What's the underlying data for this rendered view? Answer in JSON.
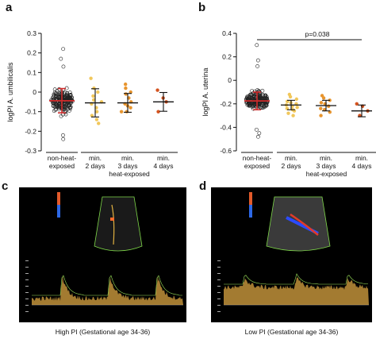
{
  "panels": {
    "a": "a",
    "b": "b",
    "c": "c",
    "d": "d"
  },
  "chart_data": [
    {
      "type": "scatter",
      "panel": "a",
      "ylabel": "logPI A. umbilicalis",
      "ylim": [
        -0.3,
        0.3
      ],
      "yticks": [
        "0.3",
        "0.2",
        "0.1",
        "0",
        "-0.1",
        "-0.2",
        "-0.3"
      ],
      "group_label": "heat-exposed",
      "categories": [
        {
          "lines": [
            "non-heat-",
            "exposed"
          ],
          "center": -0.044,
          "spread": 0.062,
          "n": 200,
          "points": [
            0.22,
            0.17,
            -0.24,
            -0.22,
            0.13
          ]
        },
        {
          "lines": [
            "min.",
            "2 days"
          ],
          "mean": -0.055,
          "sd": 0.072,
          "points": [
            0.07,
            0.02,
            0.0,
            -0.02,
            -0.04,
            -0.05,
            -0.06,
            -0.08,
            -0.1,
            -0.12,
            -0.14,
            -0.16
          ]
        },
        {
          "lines": [
            "min.",
            "3 days"
          ],
          "mean": -0.055,
          "sd": 0.048,
          "points": [
            0.04,
            0.02,
            0.0,
            -0.01,
            -0.03,
            -0.05,
            -0.06,
            -0.07,
            -0.08,
            -0.1,
            -0.1
          ]
        },
        {
          "lines": [
            "min.",
            "4 days"
          ],
          "mean": -0.05,
          "sd": 0.048,
          "points": [
            0.01,
            -0.03,
            -0.05,
            -0.1
          ]
        }
      ]
    },
    {
      "type": "scatter",
      "panel": "b",
      "ylabel": "logPI A. uterina",
      "ylim": [
        -0.6,
        0.4
      ],
      "yticks": [
        "0.4",
        "0.2",
        "0",
        "-0.2",
        "-0.4",
        "-0.6"
      ],
      "group_label": "heat-exposed",
      "annotation": "p=0.038",
      "categories": [
        {
          "lines": [
            "non-heat-",
            "exposed"
          ],
          "center": -0.175,
          "spread": 0.075,
          "n": 220,
          "points": [
            0.3,
            0.17,
            0.12,
            -0.45,
            -0.48,
            -0.42
          ]
        },
        {
          "lines": [
            "min.",
            "2 days"
          ],
          "mean": -0.21,
          "sd": 0.04,
          "points": [
            -0.12,
            -0.14,
            -0.16,
            -0.18,
            -0.19,
            -0.2,
            -0.21,
            -0.22,
            -0.23,
            -0.24,
            -0.25,
            -0.26,
            -0.28,
            -0.3
          ]
        },
        {
          "lines": [
            "min.",
            "3 days"
          ],
          "mean": -0.215,
          "sd": 0.045,
          "points": [
            -0.13,
            -0.15,
            -0.17,
            -0.19,
            -0.2,
            -0.22,
            -0.24,
            -0.25,
            -0.27,
            -0.3
          ]
        },
        {
          "lines": [
            "min.",
            "4 days"
          ],
          "mean": -0.26,
          "sd": 0.05,
          "points": [
            -0.2,
            -0.22,
            -0.26,
            -0.3
          ]
        }
      ]
    }
  ],
  "colors": {
    "control": "#cf2b2b",
    "day2": "#f1c75b",
    "day3": "#e8952e",
    "day4": "#d4531f",
    "control_points": "#222222",
    "doppler": "#d9a441"
  },
  "ultrasound": {
    "c": {
      "caption": "High PI (Gestational age 34-36)"
    },
    "d": {
      "caption": "Low PI (Gestational age 34-36)"
    }
  }
}
